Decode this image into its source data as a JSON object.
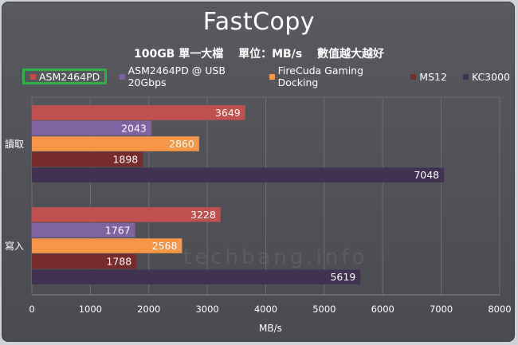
{
  "chart_data": {
    "type": "bar",
    "orientation": "horizontal",
    "title": "FastCopy",
    "subtitle": "100GB 單一大檔　 單位：MB/s　 數值越大越好",
    "xlabel": "MB/s",
    "ylabel": "",
    "xlim": [
      0,
      8000
    ],
    "xticks": [
      0,
      1000,
      2000,
      3000,
      4000,
      5000,
      6000,
      7000,
      8000
    ],
    "categories": [
      "讀取",
      "寫入"
    ],
    "series": [
      {
        "name": "ASM2464PD",
        "color": "#c0504d",
        "values": [
          3649,
          3228
        ]
      },
      {
        "name": "ASM2464PD @ USB 20Gbps",
        "color": "#8064a2",
        "values": [
          2043,
          1767
        ]
      },
      {
        "name": "FireCuda Gaming Docking",
        "color": "#f79646",
        "values": [
          2860,
          2568
        ]
      },
      {
        "name": "MS12",
        "color": "#772c2a",
        "values": [
          1898,
          1788
        ]
      },
      {
        "name": "KC3000",
        "color": "#403152",
        "values": [
          7048,
          5619
        ]
      }
    ],
    "legend_placement": "top",
    "legend_highlight": "ASM2464PD",
    "grid": true
  },
  "watermark": "techbang.info"
}
